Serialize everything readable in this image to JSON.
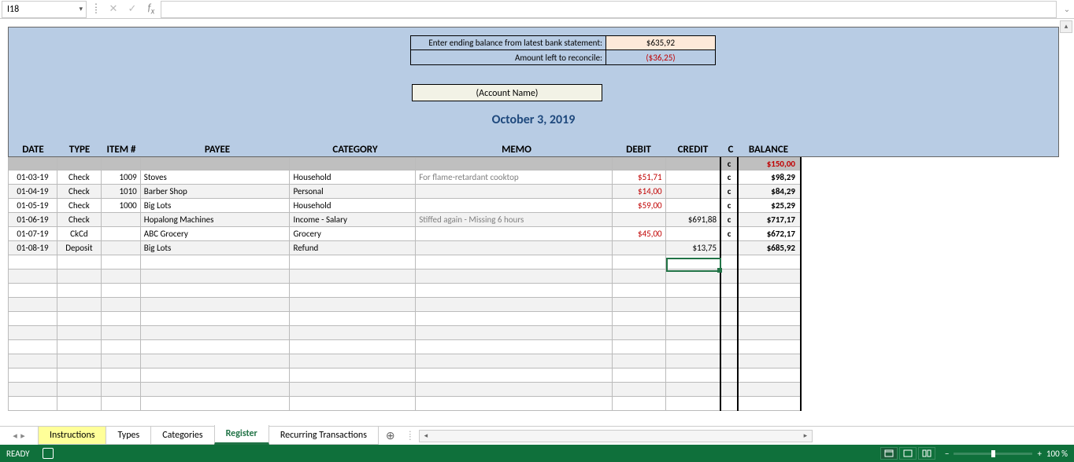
{
  "formula_bar": {
    "cell_ref": "I18",
    "formula": ""
  },
  "reconcile": {
    "ending_label": "Enter ending balance from latest bank statement:",
    "ending_value": "$635,92",
    "left_label": "Amount left to reconcile:",
    "left_value": "($36,25)"
  },
  "account_name": "(Account Name)",
  "date_title": "October 3, 2019",
  "headers": {
    "date": "DATE",
    "type": "TYPE",
    "item": "ITEM #",
    "payee": "PAYEE",
    "category": "CATEGORY",
    "memo": "MEMO",
    "debit": "DEBIT",
    "credit": "CREDIT",
    "c": "C",
    "balance": "BALANCE"
  },
  "initial": {
    "c": "c",
    "balance": "$150,00"
  },
  "rows": [
    {
      "date": "01-03-19",
      "type": "Check",
      "item": "1009",
      "payee": "Stoves",
      "category": "Household",
      "memo": "For flame-retardant cooktop",
      "debit": "$51,71",
      "credit": "",
      "c": "c",
      "balance": "$98,29"
    },
    {
      "date": "01-04-19",
      "type": "Check",
      "item": "1010",
      "payee": "Barber Shop",
      "category": "Personal",
      "memo": "",
      "debit": "$14,00",
      "credit": "",
      "c": "c",
      "balance": "$84,29"
    },
    {
      "date": "01-05-19",
      "type": "Check",
      "item": "1000",
      "payee": "Big Lots",
      "category": "Household",
      "memo": "",
      "debit": "$59,00",
      "credit": "",
      "c": "c",
      "balance": "$25,29"
    },
    {
      "date": "01-06-19",
      "type": "Check",
      "item": "",
      "payee": "Hopalong Machines",
      "category": "Income - Salary",
      "memo": "Stiffed again - Missing 6 hours",
      "debit": "",
      "credit": "$691,88",
      "c": "c",
      "balance": "$717,17"
    },
    {
      "date": "01-07-19",
      "type": "CkCd",
      "item": "",
      "payee": "ABC Grocery",
      "category": "Grocery",
      "memo": "",
      "debit": "$45,00",
      "credit": "",
      "c": "c",
      "balance": "$672,17"
    },
    {
      "date": "01-08-19",
      "type": "Deposit",
      "item": "",
      "payee": "Big Lots",
      "category": "Refund",
      "memo": "",
      "debit": "",
      "credit": "$13,75",
      "c": "",
      "balance": "$685,92"
    }
  ],
  "empty_rows": 11,
  "tabs": {
    "list": [
      "Instructions",
      "Types",
      "Categories",
      "Register",
      "Recurring Transactions"
    ],
    "active": "Register",
    "highlighted": "Instructions"
  },
  "status": {
    "ready": "READY",
    "zoom": "100 %"
  },
  "colors": {
    "blue_block": "#b8cce4",
    "excel_green": "#217346",
    "status_green": "#0f703b",
    "debit_red": "#c00000",
    "account_bg": "#f2f2e6",
    "ending_bg": "#fde9d9"
  }
}
